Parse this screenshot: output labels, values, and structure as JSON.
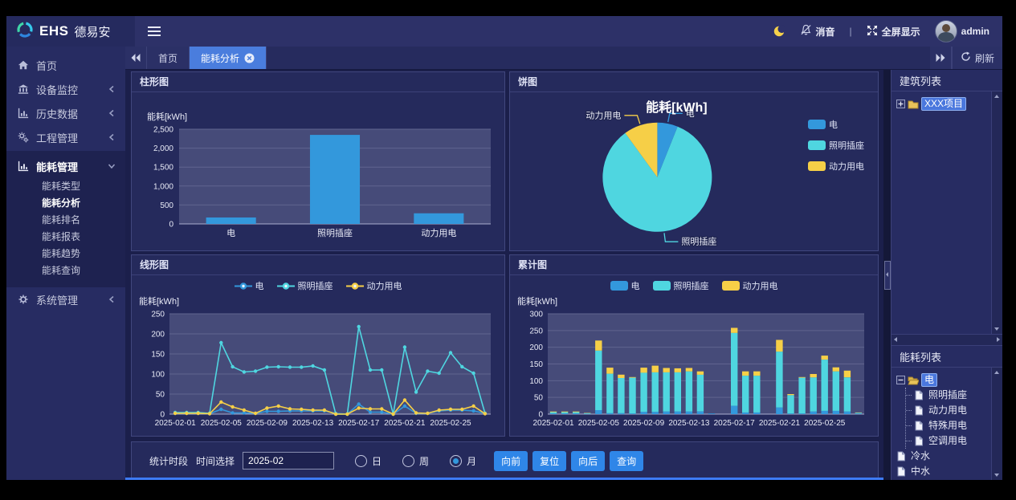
{
  "header": {
    "brand_ehs": "EHS",
    "brand_name": "德易安",
    "mute_label": "消音",
    "separator": "|",
    "fullscreen_label": "全屏显示",
    "username": "admin"
  },
  "sidebar": {
    "items": [
      {
        "key": "home",
        "icon": "home",
        "label": "首页"
      },
      {
        "key": "device-monitor",
        "icon": "bank",
        "label": "设备监控",
        "arrow": "collapsed"
      },
      {
        "key": "history-data",
        "icon": "chart",
        "label": "历史数据",
        "arrow": "collapsed"
      },
      {
        "key": "project-mgmt",
        "icon": "gears",
        "label": "工程管理",
        "arrow": "collapsed"
      },
      {
        "key": "energy-mgmt",
        "icon": "chart",
        "label": "能耗管理",
        "arrow": "expanded",
        "active": true,
        "children": [
          {
            "key": "energy-type",
            "label": "能耗类型"
          },
          {
            "key": "energy-analysis",
            "label": "能耗分析",
            "active": true
          },
          {
            "key": "energy-ranking",
            "label": "能耗排名"
          },
          {
            "key": "energy-report",
            "label": "能耗报表"
          },
          {
            "key": "energy-trend",
            "label": "能耗趋势"
          },
          {
            "key": "energy-query",
            "label": "能耗查询"
          }
        ]
      },
      {
        "key": "system-mgmt",
        "icon": "gear",
        "label": "系统管理",
        "arrow": "collapsed"
      }
    ]
  },
  "tabbar": {
    "tabs": [
      {
        "key": "home",
        "label": "首页",
        "active": false,
        "closable": false
      },
      {
        "key": "energy-analysis",
        "label": "能耗分析",
        "active": true,
        "closable": true
      }
    ],
    "refresh_label": "刷新"
  },
  "chart_data": [
    {
      "type": "bar",
      "title": "柱形图",
      "axis_name": "能耗[kWh]",
      "categories": [
        "电",
        "照明插座",
        "动力用电"
      ],
      "values": [
        170,
        2350,
        280
      ],
      "color": "#3398dc",
      "ylim": [
        0,
        2500
      ],
      "ytick_step": 500,
      "grid": true
    },
    {
      "type": "pie",
      "title": "饼图",
      "chart_title": "能耗[kWh]",
      "labels": [
        "电",
        "照明插座",
        "动力用电"
      ],
      "values": [
        170,
        2350,
        280
      ],
      "colors": [
        "#3398dc",
        "#4fd6e0",
        "#f6cf47"
      ],
      "legend_position": "right"
    },
    {
      "type": "line",
      "title": "线形图",
      "axis_name": "能耗[kWh]",
      "ylim": [
        0,
        250
      ],
      "ytick_step": 50,
      "x_tick_every": 4,
      "legend_position": "top",
      "x": [
        "2025-02-01",
        "2025-02-02",
        "2025-02-03",
        "2025-02-04",
        "2025-02-05",
        "2025-02-06",
        "2025-02-07",
        "2025-02-08",
        "2025-02-09",
        "2025-02-10",
        "2025-02-11",
        "2025-02-12",
        "2025-02-13",
        "2025-02-14",
        "2025-02-15",
        "2025-02-16",
        "2025-02-17",
        "2025-02-18",
        "2025-02-19",
        "2025-02-20",
        "2025-02-21",
        "2025-02-22",
        "2025-02-23",
        "2025-02-24",
        "2025-02-25",
        "2025-02-26",
        "2025-02-27",
        "2025-02-28"
      ],
      "series": [
        {
          "name": "电",
          "color": "#3398dc",
          "values": [
            2,
            2,
            2,
            1,
            12,
            3,
            3,
            2,
            7,
            7,
            8,
            8,
            8,
            8,
            2,
            0,
            25,
            5,
            5,
            0,
            20,
            2,
            2,
            8,
            10,
            10,
            8,
            2
          ]
        },
        {
          "name": "照明插座",
          "color": "#4fd6e0",
          "values": [
            4,
            4,
            4,
            2,
            178,
            118,
            105,
            107,
            117,
            118,
            117,
            117,
            120,
            110,
            0,
            0,
            218,
            110,
            110,
            0,
            167,
            55,
            107,
            102,
            153,
            118,
            102,
            2
          ]
        },
        {
          "name": "动力用电",
          "color": "#f6cf47",
          "values": [
            2,
            2,
            2,
            1,
            30,
            18,
            10,
            2,
            15,
            20,
            13,
            12,
            10,
            10,
            0,
            0,
            15,
            13,
            13,
            0,
            35,
            3,
            2,
            10,
            12,
            12,
            20,
            1
          ]
        }
      ]
    },
    {
      "type": "stacked_bar",
      "title": "累计图",
      "axis_name": "能耗[kWh]",
      "ylim": [
        0,
        300
      ],
      "ytick_step": 50,
      "x_tick_every": 4,
      "legend_position": "top",
      "x": [
        "2025-02-01",
        "2025-02-02",
        "2025-02-03",
        "2025-02-04",
        "2025-02-05",
        "2025-02-06",
        "2025-02-07",
        "2025-02-08",
        "2025-02-09",
        "2025-02-10",
        "2025-02-11",
        "2025-02-12",
        "2025-02-13",
        "2025-02-14",
        "2025-02-15",
        "2025-02-16",
        "2025-02-17",
        "2025-02-18",
        "2025-02-19",
        "2025-02-20",
        "2025-02-21",
        "2025-02-22",
        "2025-02-23",
        "2025-02-24",
        "2025-02-25",
        "2025-02-26",
        "2025-02-27",
        "2025-02-28"
      ],
      "series": [
        {
          "name": "电",
          "color": "#3398dc",
          "values": [
            2,
            2,
            2,
            1,
            12,
            3,
            3,
            2,
            7,
            7,
            8,
            8,
            8,
            8,
            2,
            0,
            25,
            5,
            5,
            0,
            20,
            2,
            2,
            8,
            10,
            10,
            8,
            2
          ]
        },
        {
          "name": "照明插座",
          "color": "#4fd6e0",
          "values": [
            4,
            4,
            4,
            2,
            178,
            118,
            105,
            107,
            117,
            118,
            117,
            117,
            120,
            110,
            0,
            0,
            218,
            110,
            110,
            0,
            167,
            55,
            107,
            102,
            153,
            118,
            102,
            2
          ]
        },
        {
          "name": "动力用电",
          "color": "#f6cf47",
          "values": [
            2,
            2,
            2,
            1,
            30,
            18,
            10,
            2,
            15,
            20,
            13,
            12,
            10,
            10,
            0,
            0,
            15,
            13,
            13,
            0,
            35,
            3,
            2,
            10,
            12,
            12,
            20,
            1
          ]
        }
      ]
    }
  ],
  "time_panel": {
    "section_label": "统计时段",
    "picker_label": "时间选择",
    "value": "2025-02",
    "radios": [
      {
        "key": "day",
        "label": "日",
        "checked": false
      },
      {
        "key": "week",
        "label": "周",
        "checked": false
      },
      {
        "key": "month",
        "label": "月",
        "checked": true
      }
    ],
    "buttons": [
      {
        "key": "forward",
        "label": "向前"
      },
      {
        "key": "reset",
        "label": "复位"
      },
      {
        "key": "backward",
        "label": "向后"
      },
      {
        "key": "query",
        "label": "查询"
      }
    ]
  },
  "right_panel": {
    "building_title": "建筑列表",
    "building_tree": [
      {
        "key": "xxx-project",
        "label": "XXX项目",
        "icon": "folder",
        "expander": "plus",
        "selected": true
      }
    ],
    "energy_title": "能耗列表",
    "energy_tree": [
      {
        "key": "electricity",
        "label": "电",
        "icon": "folder-open",
        "expander": "minus",
        "selected": true,
        "children": [
          {
            "key": "lighting-socket",
            "label": "照明插座",
            "icon": "file"
          },
          {
            "key": "power-electricity",
            "label": "动力用电",
            "icon": "file"
          },
          {
            "key": "special-electricity",
            "label": "特殊用电",
            "icon": "file"
          },
          {
            "key": "hvac-electricity",
            "label": "空调用电",
            "icon": "file"
          }
        ]
      },
      {
        "key": "cold-water",
        "label": "冷水",
        "icon": "file"
      },
      {
        "key": "reclaimed-water",
        "label": "中水",
        "icon": "file"
      }
    ]
  },
  "colors": {
    "series_blue": "#3398dc",
    "series_cyan": "#4fd6e0",
    "series_yellow": "#f6cf47",
    "active_tab": "#4a7ddd",
    "button_blue": "#2f86e8",
    "selected_node": "#4a77dd",
    "moon": "#f5d14b",
    "plot_background": "#464b79"
  }
}
